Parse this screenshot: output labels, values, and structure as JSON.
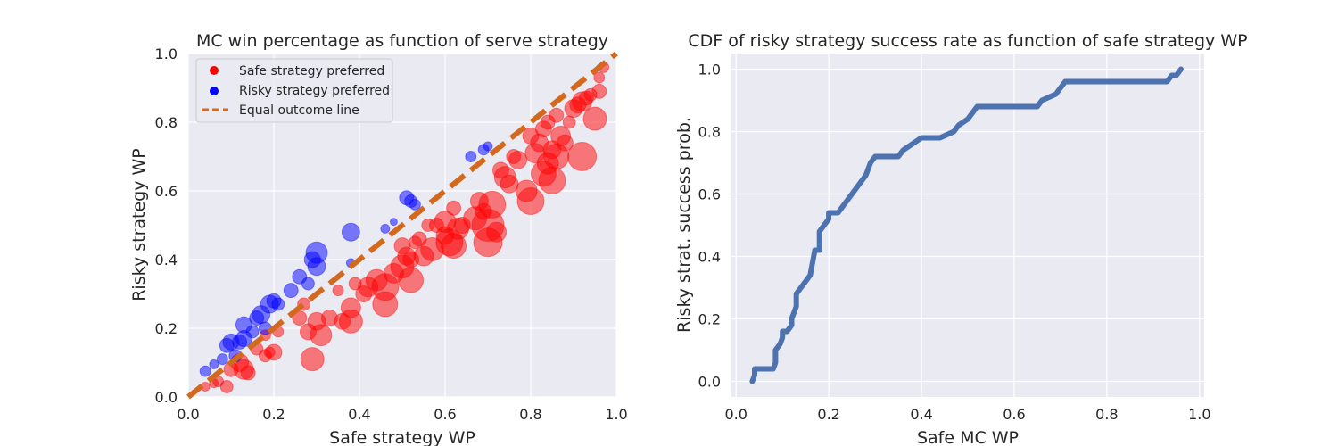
{
  "chart_data": [
    {
      "type": "scatter",
      "title": "MC win percentage as function of serve strategy",
      "xlabel": "Safe strategy WP",
      "ylabel": "Risky strategy WP",
      "xlim": [
        0.0,
        1.0
      ],
      "ylim": [
        0.0,
        1.0
      ],
      "xticks": [
        "0.0",
        "0.2",
        "0.4",
        "0.6",
        "0.8",
        "1.0"
      ],
      "yticks": [
        "0.0",
        "0.2",
        "0.4",
        "0.6",
        "0.8",
        "1.0"
      ],
      "grid": true,
      "legend_position": "top-left",
      "legend": [
        {
          "label": "Safe strategy preferred",
          "color": "#ff0000",
          "marker": "dot"
        },
        {
          "label": "Risky strategy preferred",
          "color": "#0000ff",
          "marker": "dot"
        },
        {
          "label": "Equal outcome line",
          "color": "#d2691e",
          "marker": "dashed-line"
        }
      ],
      "series": [
        {
          "name": "Safe strategy preferred",
          "color": "#ff0000",
          "points": [
            [
              0.04,
              0.03,
              5
            ],
            [
              0.06,
              0.04,
              5
            ],
            [
              0.07,
              0.045,
              6
            ],
            [
              0.09,
              0.03,
              7
            ],
            [
              0.1,
              0.08,
              8
            ],
            [
              0.12,
              0.1,
              10
            ],
            [
              0.13,
              0.08,
              11
            ],
            [
              0.14,
              0.07,
              8
            ],
            [
              0.16,
              0.14,
              7
            ],
            [
              0.18,
              0.12,
              7
            ],
            [
              0.19,
              0.13,
              6
            ],
            [
              0.21,
              0.19,
              6
            ],
            [
              0.2,
              0.13,
              9
            ],
            [
              0.18,
              0.18,
              6
            ],
            [
              0.26,
              0.23,
              8
            ],
            [
              0.27,
              0.27,
              7
            ],
            [
              0.28,
              0.19,
              9
            ],
            [
              0.29,
              0.11,
              13
            ],
            [
              0.3,
              0.22,
              10
            ],
            [
              0.31,
              0.18,
              12
            ],
            [
              0.33,
              0.23,
              9
            ],
            [
              0.35,
              0.31,
              6
            ],
            [
              0.36,
              0.22,
              9
            ],
            [
              0.38,
              0.26,
              11
            ],
            [
              0.38,
              0.22,
              13
            ],
            [
              0.39,
              0.33,
              7
            ],
            [
              0.41,
              0.3,
              9
            ],
            [
              0.42,
              0.32,
              11
            ],
            [
              0.44,
              0.34,
              12
            ],
            [
              0.46,
              0.27,
              14
            ],
            [
              0.46,
              0.32,
              15
            ],
            [
              0.48,
              0.36,
              11
            ],
            [
              0.5,
              0.38,
              13
            ],
            [
              0.5,
              0.44,
              9
            ],
            [
              0.51,
              0.41,
              10
            ],
            [
              0.52,
              0.4,
              9
            ],
            [
              0.52,
              0.34,
              14
            ],
            [
              0.53,
              0.45,
              7
            ],
            [
              0.54,
              0.46,
              8
            ],
            [
              0.55,
              0.41,
              11
            ],
            [
              0.56,
              0.5,
              7
            ],
            [
              0.57,
              0.43,
              13
            ],
            [
              0.58,
              0.5,
              8
            ],
            [
              0.6,
              0.47,
              10
            ],
            [
              0.6,
              0.51,
              12
            ],
            [
              0.61,
              0.45,
              15
            ],
            [
              0.62,
              0.55,
              8
            ],
            [
              0.62,
              0.44,
              14
            ],
            [
              0.63,
              0.49,
              12
            ],
            [
              0.64,
              0.5,
              9
            ],
            [
              0.67,
              0.52,
              13
            ],
            [
              0.68,
              0.57,
              10
            ],
            [
              0.69,
              0.54,
              9
            ],
            [
              0.7,
              0.45,
              16
            ],
            [
              0.7,
              0.5,
              18
            ],
            [
              0.71,
              0.56,
              15
            ],
            [
              0.72,
              0.48,
              11
            ],
            [
              0.73,
              0.66,
              9
            ],
            [
              0.74,
              0.64,
              12
            ],
            [
              0.75,
              0.62,
              10
            ],
            [
              0.76,
              0.7,
              8
            ],
            [
              0.77,
              0.69,
              10
            ],
            [
              0.79,
              0.6,
              12
            ],
            [
              0.8,
              0.57,
              15
            ],
            [
              0.8,
              0.76,
              9
            ],
            [
              0.81,
              0.71,
              11
            ],
            [
              0.82,
              0.74,
              10
            ],
            [
              0.83,
              0.78,
              9
            ],
            [
              0.83,
              0.65,
              14
            ],
            [
              0.84,
              0.68,
              12
            ],
            [
              0.84,
              0.8,
              8
            ],
            [
              0.85,
              0.63,
              15
            ],
            [
              0.85,
              0.72,
              10
            ],
            [
              0.86,
              0.7,
              14
            ],
            [
              0.86,
              0.82,
              8
            ],
            [
              0.87,
              0.76,
              11
            ],
            [
              0.88,
              0.74,
              9
            ],
            [
              0.89,
              0.8,
              7
            ],
            [
              0.9,
              0.84,
              10
            ],
            [
              0.91,
              0.85,
              9
            ],
            [
              0.92,
              0.86,
              11
            ],
            [
              0.92,
              0.7,
              16
            ],
            [
              0.93,
              0.87,
              8
            ],
            [
              0.94,
              0.88,
              7
            ],
            [
              0.95,
              0.81,
              13
            ],
            [
              0.96,
              0.93,
              6
            ],
            [
              0.96,
              0.89,
              8
            ],
            [
              0.97,
              0.96,
              6
            ]
          ]
        },
        {
          "name": "Risky strategy preferred",
          "color": "#0000ff",
          "points": [
            [
              0.04,
              0.075,
              6
            ],
            [
              0.06,
              0.095,
              5
            ],
            [
              0.08,
              0.11,
              6
            ],
            [
              0.09,
              0.15,
              8
            ],
            [
              0.1,
              0.16,
              9
            ],
            [
              0.11,
              0.12,
              7
            ],
            [
              0.12,
              0.16,
              8
            ],
            [
              0.13,
              0.17,
              9
            ],
            [
              0.13,
              0.21,
              9
            ],
            [
              0.15,
              0.19,
              7
            ],
            [
              0.16,
              0.23,
              8
            ],
            [
              0.17,
              0.24,
              10
            ],
            [
              0.18,
              0.2,
              7
            ],
            [
              0.19,
              0.27,
              10
            ],
            [
              0.2,
              0.28,
              8
            ],
            [
              0.21,
              0.27,
              7
            ],
            [
              0.24,
              0.31,
              8
            ],
            [
              0.26,
              0.35,
              8
            ],
            [
              0.28,
              0.33,
              7
            ],
            [
              0.29,
              0.4,
              9
            ],
            [
              0.3,
              0.38,
              10
            ],
            [
              0.3,
              0.42,
              12
            ],
            [
              0.38,
              0.48,
              10
            ],
            [
              0.38,
              0.39,
              5
            ],
            [
              0.46,
              0.49,
              5
            ],
            [
              0.48,
              0.51,
              4
            ],
            [
              0.51,
              0.58,
              8
            ],
            [
              0.52,
              0.57,
              7
            ],
            [
              0.53,
              0.56,
              6
            ],
            [
              0.66,
              0.7,
              6
            ],
            [
              0.69,
              0.72,
              6
            ],
            [
              0.7,
              0.73,
              5
            ],
            [
              0.96,
              0.96,
              3
            ]
          ]
        },
        {
          "name": "Equal outcome line",
          "color": "#d2691e",
          "points": [
            [
              0.0,
              0.0
            ],
            [
              1.0,
              1.0
            ]
          ]
        }
      ]
    },
    {
      "type": "line",
      "title": "CDF of risky strategy success rate as function of safe strategy WP",
      "xlabel": "Safe MC WP",
      "ylabel": "Risky strat. success prob.",
      "xlim": [
        -0.01,
        1.01
      ],
      "ylim": [
        -0.05,
        1.05
      ],
      "xticks": [
        "0.0",
        "0.2",
        "0.4",
        "0.6",
        "0.8",
        "1.0"
      ],
      "yticks": [
        "0.0",
        "0.2",
        "0.4",
        "0.6",
        "0.8",
        "1.0"
      ],
      "grid": true,
      "series": [
        {
          "color": "#4c72b0",
          "x": [
            0.035,
            0.04,
            0.04,
            0.06,
            0.08,
            0.085,
            0.085,
            0.095,
            0.1,
            0.1,
            0.11,
            0.12,
            0.12,
            0.13,
            0.13,
            0.14,
            0.15,
            0.16,
            0.165,
            0.17,
            0.17,
            0.18,
            0.18,
            0.19,
            0.2,
            0.2,
            0.21,
            0.22,
            0.23,
            0.24,
            0.25,
            0.26,
            0.27,
            0.28,
            0.29,
            0.3,
            0.31,
            0.32,
            0.35,
            0.36,
            0.38,
            0.4,
            0.42,
            0.44,
            0.47,
            0.48,
            0.5,
            0.51,
            0.52,
            0.55,
            0.6,
            0.65,
            0.66,
            0.69,
            0.7,
            0.71,
            0.75,
            0.8,
            0.85,
            0.9,
            0.93,
            0.94,
            0.95,
            0.96
          ],
          "y": [
            0.0,
            0.02,
            0.04,
            0.04,
            0.04,
            0.06,
            0.1,
            0.12,
            0.14,
            0.16,
            0.16,
            0.18,
            0.2,
            0.24,
            0.28,
            0.3,
            0.32,
            0.34,
            0.38,
            0.42,
            0.42,
            0.42,
            0.48,
            0.5,
            0.52,
            0.54,
            0.54,
            0.54,
            0.56,
            0.58,
            0.6,
            0.62,
            0.64,
            0.66,
            0.7,
            0.72,
            0.72,
            0.72,
            0.72,
            0.74,
            0.76,
            0.78,
            0.78,
            0.78,
            0.8,
            0.82,
            0.84,
            0.86,
            0.88,
            0.88,
            0.88,
            0.88,
            0.9,
            0.92,
            0.94,
            0.96,
            0.96,
            0.96,
            0.96,
            0.96,
            0.96,
            0.98,
            0.98,
            1.0
          ]
        }
      ]
    }
  ]
}
